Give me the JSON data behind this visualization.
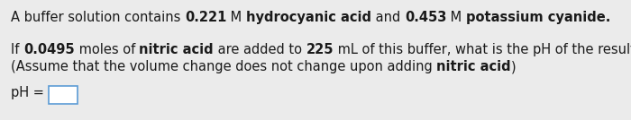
{
  "line1_parts": [
    {
      "text": "A buffer solution contains ",
      "bold": false
    },
    {
      "text": "0.221",
      "bold": true
    },
    {
      "text": " M ",
      "bold": false
    },
    {
      "text": "hydrocyanic acid",
      "bold": true
    },
    {
      "text": " and ",
      "bold": false
    },
    {
      "text": "0.453",
      "bold": true
    },
    {
      "text": " M ",
      "bold": false
    },
    {
      "text": "potassium cyanide.",
      "bold": true
    }
  ],
  "line2_parts": [
    {
      "text": "If ",
      "bold": false
    },
    {
      "text": "0.0495",
      "bold": true
    },
    {
      "text": " moles of ",
      "bold": false
    },
    {
      "text": "nitric acid",
      "bold": true
    },
    {
      "text": " are added to ",
      "bold": false
    },
    {
      "text": "225",
      "bold": true
    },
    {
      "text": " mL of this buffer, what is the pH of the resulting solution ?",
      "bold": false
    }
  ],
  "line3_parts": [
    {
      "text": "(Assume that the volume change does not change upon adding ",
      "bold": false
    },
    {
      "text": "nitric acid",
      "bold": true
    },
    {
      "text": ")",
      "bold": false
    }
  ],
  "line4_label": "pH = ",
  "fontsize": 10.5,
  "background_color": "#ebebeb",
  "text_color": "#1a1a1a",
  "box_facecolor": "#ffffff",
  "box_edgecolor": "#5b9bd5"
}
